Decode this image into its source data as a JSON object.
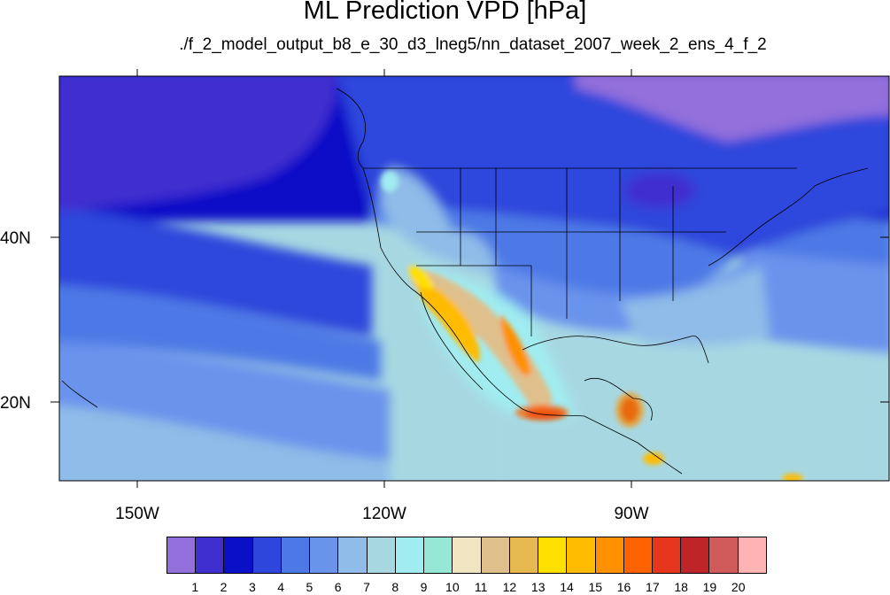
{
  "title": "ML Prediction VPD [hPa]",
  "subtitle": "./f_2_model_output_b8_e_30_d3_lneg5/nn_dataset_2007_week_2_ens_4_f_2",
  "lon_labels": [
    "150W",
    "120W",
    "90W"
  ],
  "lat_labels": [
    "40N",
    "20N"
  ],
  "colorbar": {
    "labels": [
      "1",
      "2",
      "3",
      "4",
      "5",
      "6",
      "7",
      "8",
      "9",
      "10",
      "11",
      "12",
      "13",
      "14",
      "15",
      "16",
      "17",
      "18",
      "19",
      "20"
    ],
    "colors": [
      "#9370db",
      "#3f2fcf",
      "#0a10c8",
      "#2e46dc",
      "#4d79e6",
      "#6a93ec",
      "#8fbce8",
      "#a7d8e2",
      "#a0ecf0",
      "#97e7d6",
      "#f2e5c2",
      "#dfc08d",
      "#e6b84f",
      "#ffe000",
      "#ffbb00",
      "#ff9000",
      "#ff6200",
      "#e6361d",
      "#bd2528",
      "#d15a5a",
      "#ffb4b4"
    ]
  }
}
